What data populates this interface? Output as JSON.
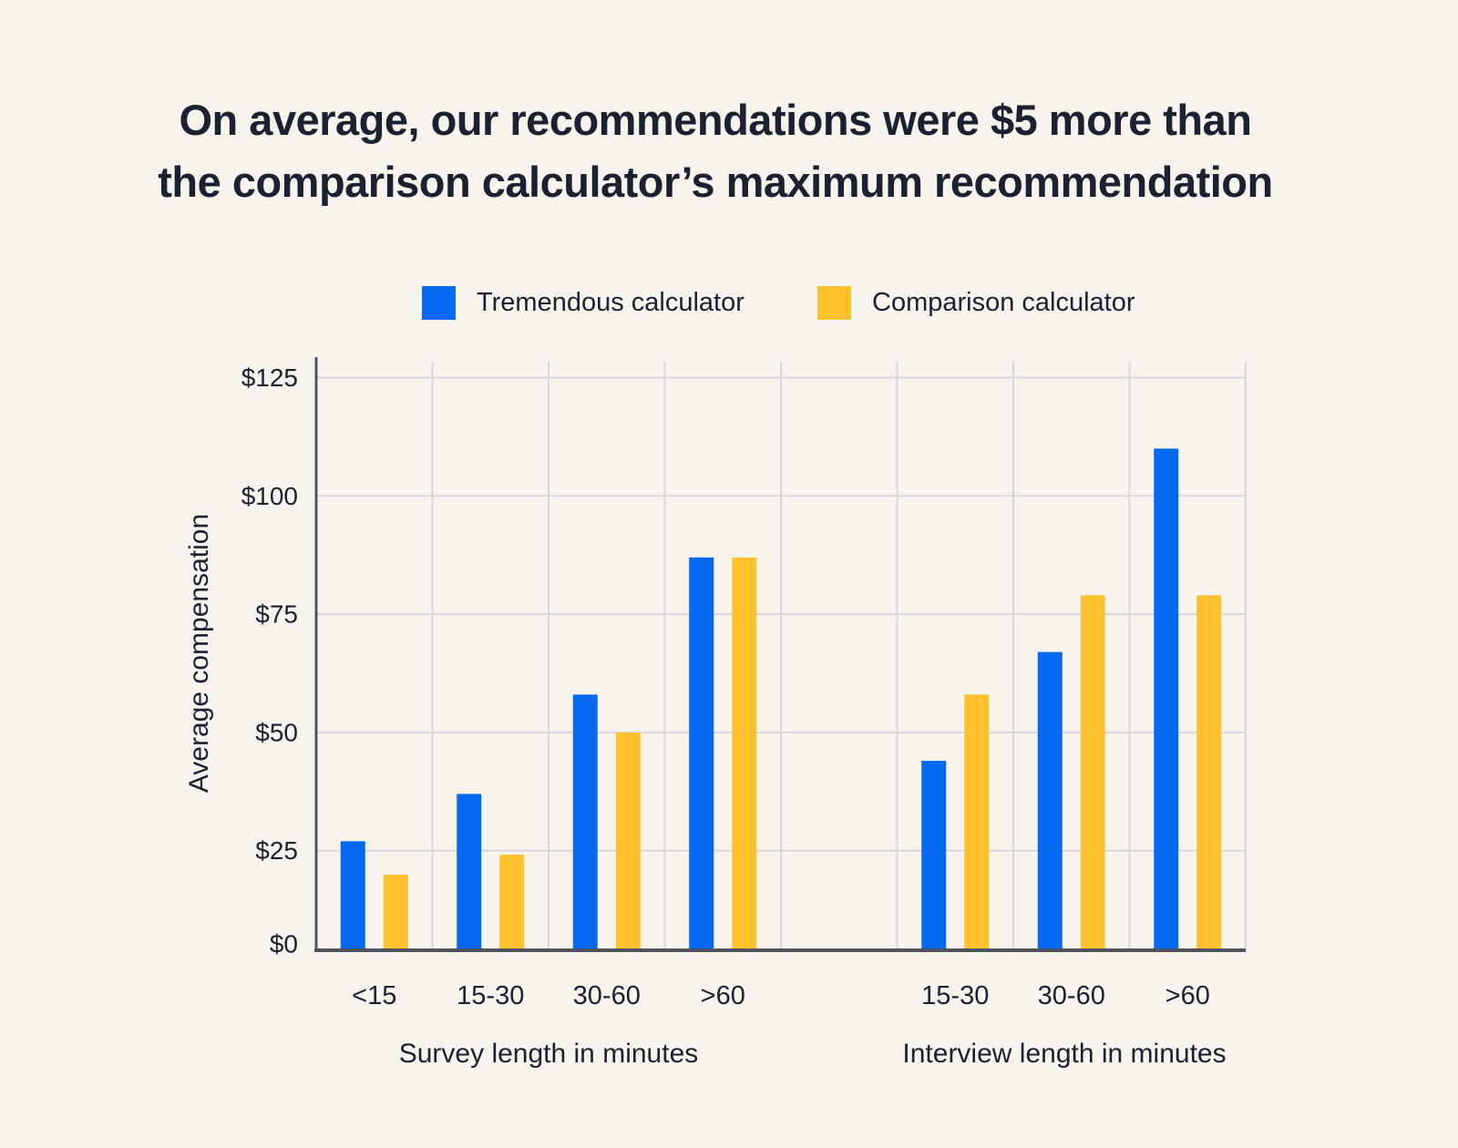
{
  "title": {
    "line1": "On average, our recommendations were $5 more than",
    "line2": "the comparison calculator’s maximum recommendation"
  },
  "legend": {
    "items": [
      {
        "label": "Tremendous calculator",
        "color": "#0669F2"
      },
      {
        "label": "Comparison calculator",
        "color": "#FFC12D"
      }
    ]
  },
  "colors": {
    "background": "#F7F4EE",
    "tremendous_blue": "#0669F2",
    "comparison_yellow": "#FFC12D",
    "gridline": "#D9D7DC",
    "axis": "#50545F",
    "text": "#1B2130"
  },
  "chart_data": {
    "type": "bar",
    "title": "On average, our recommendations were $5 more than the comparison calculator’s maximum recommendation",
    "ylabel": "Average compensation",
    "ytick_prefix": "$",
    "yticks": [
      0,
      25,
      50,
      75,
      100,
      125
    ],
    "ylim": [
      0,
      130
    ],
    "grid": true,
    "legend_position": "top",
    "series": [
      {
        "name": "Tremendous calculator",
        "key": "tremendous",
        "color": "#0669F2"
      },
      {
        "name": "Comparison calculator",
        "key": "comparison",
        "color": "#FFC12D"
      }
    ],
    "groups": [
      {
        "key": "survey",
        "xlabel": "Survey length in minutes",
        "categories": [
          "<15",
          "15-30",
          "30-60",
          ">60"
        ],
        "tremendous": [
          27,
          37,
          58,
          87
        ],
        "comparison": [
          19,
          24,
          50,
          87
        ]
      },
      {
        "key": "interview",
        "xlabel": "Interview length in minutes",
        "categories": [
          "15-30",
          "30-60",
          ">60"
        ],
        "tremendous": [
          44,
          67,
          110
        ],
        "comparison": [
          58,
          79,
          79
        ]
      }
    ]
  }
}
